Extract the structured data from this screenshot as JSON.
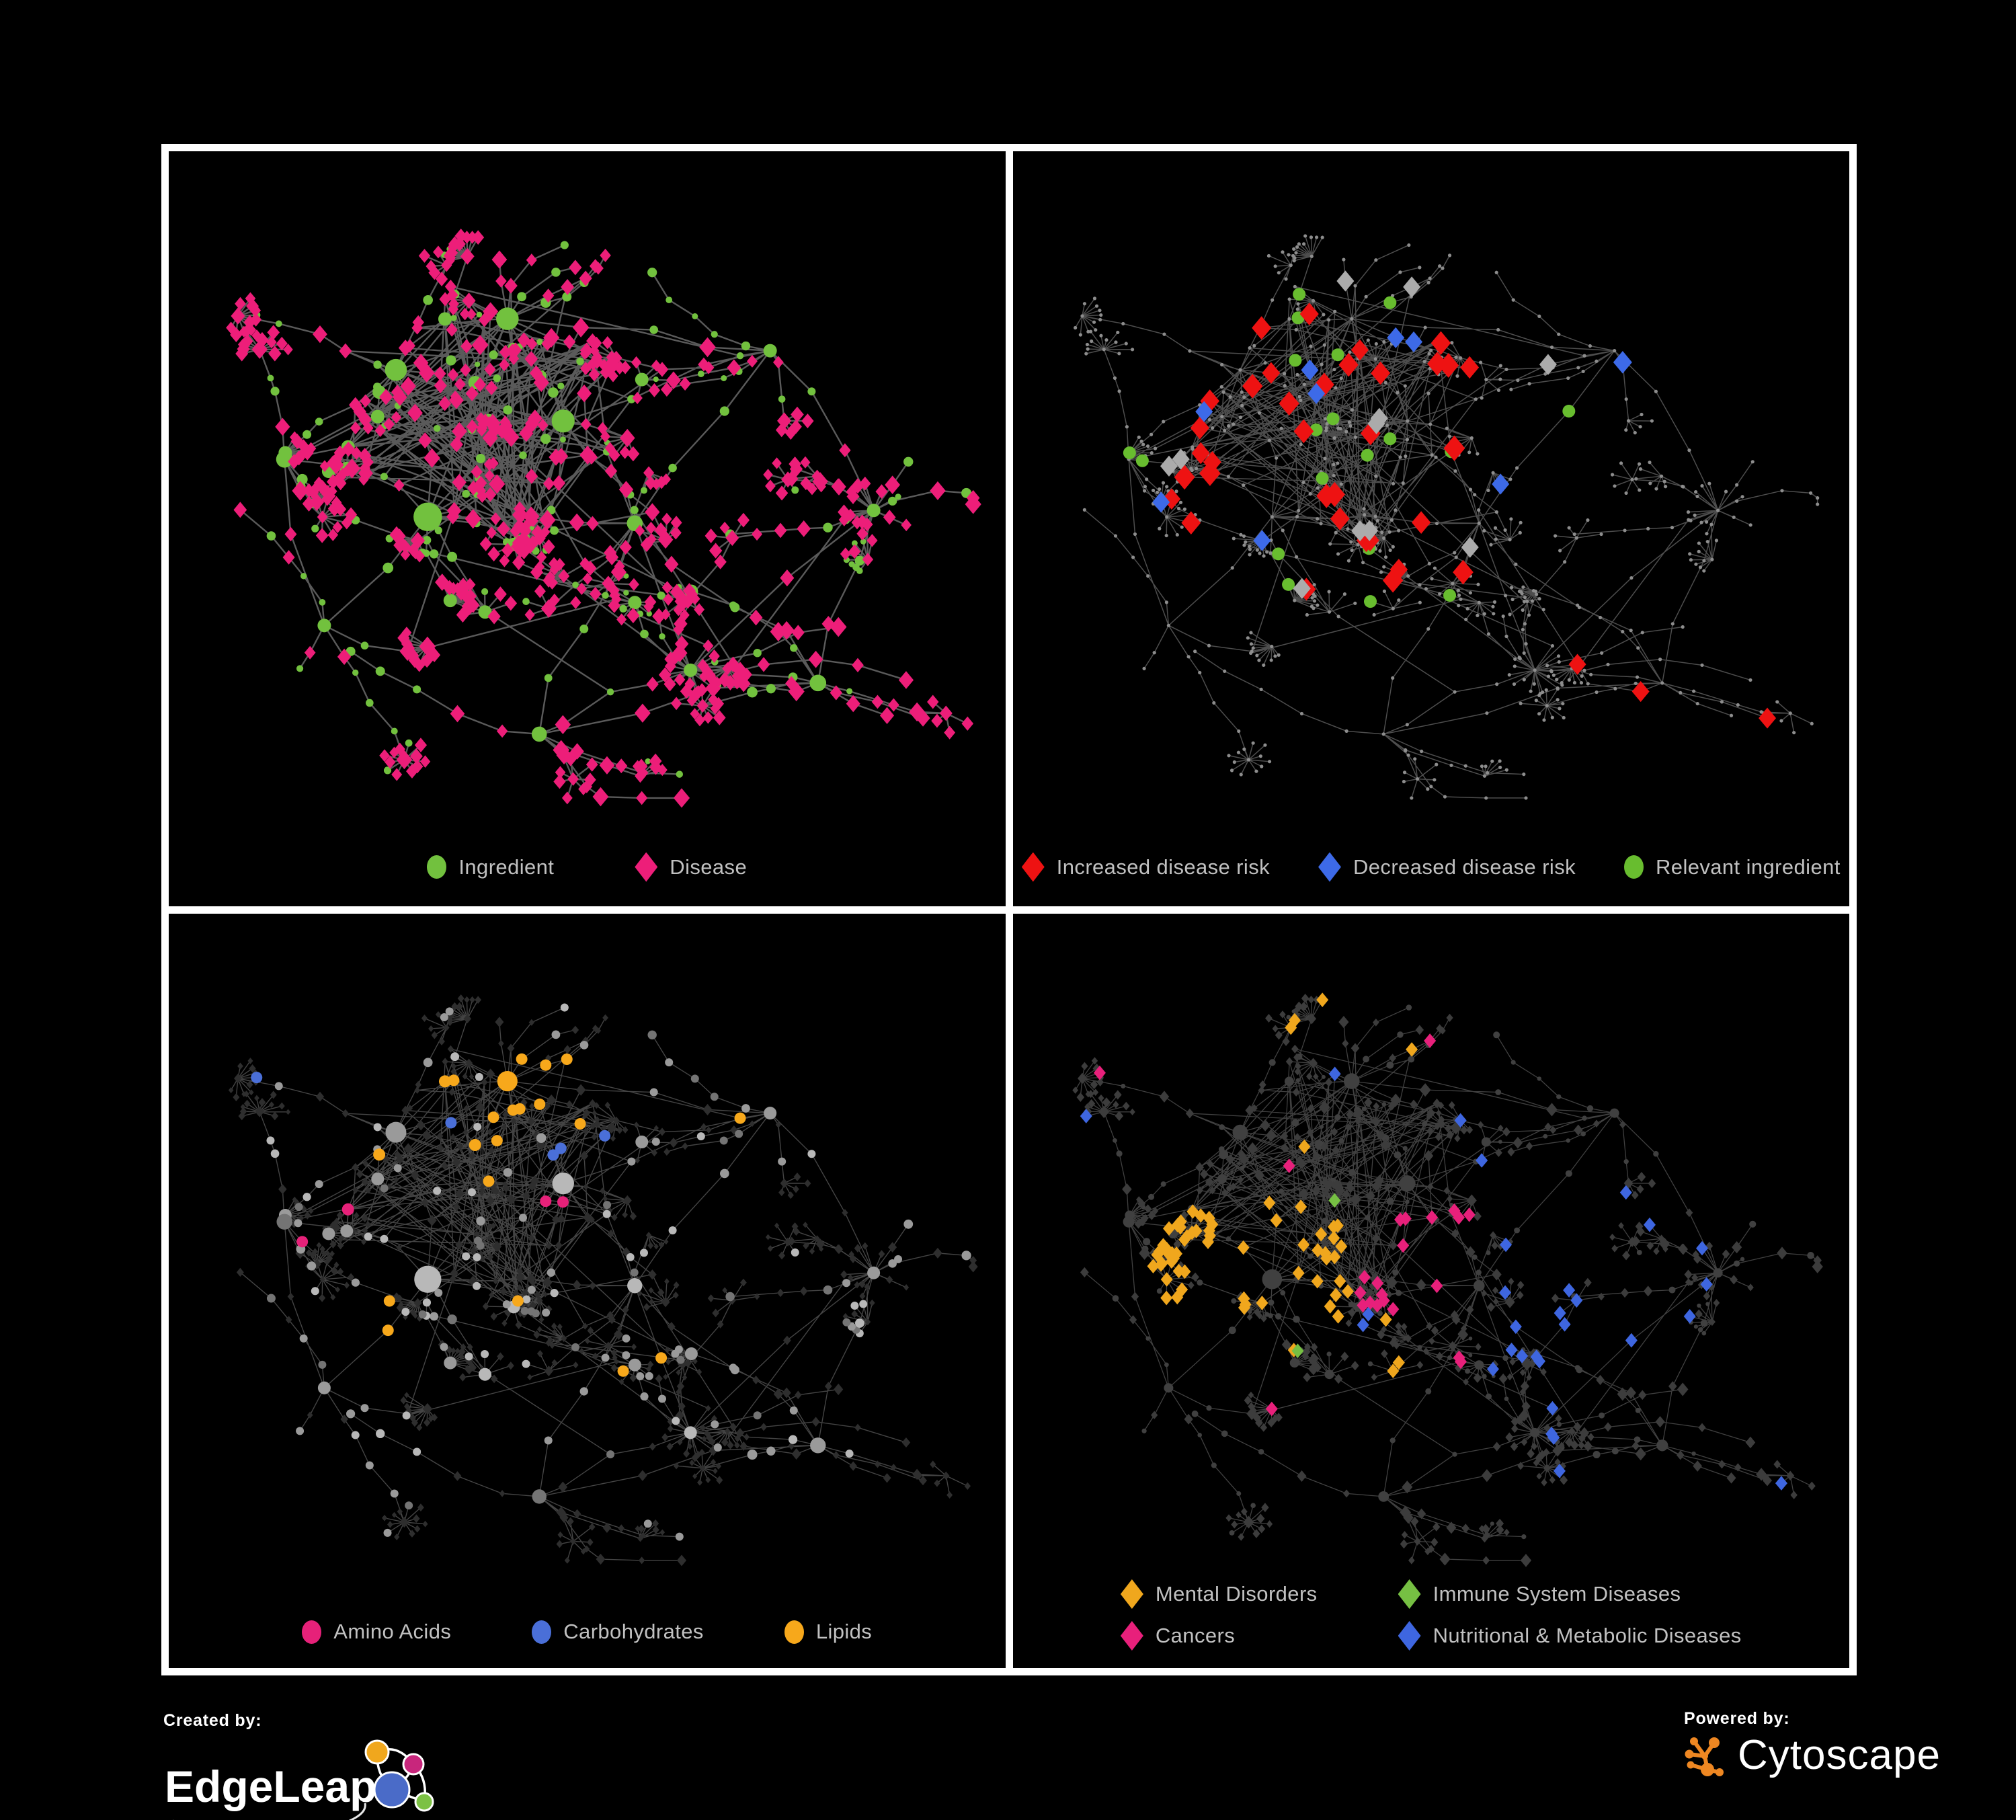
{
  "panels": [
    {
      "name": "ingredient-disease-network",
      "legend": [
        {
          "shape": "circle",
          "color": "#72c13e",
          "label": "Ingredient"
        },
        {
          "shape": "diamond",
          "color": "#ed1e79",
          "label": "Disease"
        }
      ],
      "style": {
        "edge": "#6a6a6a",
        "edgeWidth": 2.4,
        "circle": "#72c13e",
        "diamond": "#ed1e79"
      }
    },
    {
      "name": "disease-risk-network",
      "legend": [
        {
          "shape": "diamond",
          "color": "#ee1212",
          "label": "Increased disease risk"
        },
        {
          "shape": "diamond",
          "color": "#3d6ae8",
          "label": "Decreased disease risk"
        },
        {
          "shape": "circle",
          "color": "#68bd2f",
          "label": "Relevant ingredient"
        }
      ],
      "style": {
        "edge": "#5a5a5a",
        "edgeWidth": 1.5,
        "base": "#8d8d8d",
        "red": "#ee1212",
        "blue": "#3d6ae8",
        "grayHl": "#ababab",
        "green": "#68bd2f"
      }
    },
    {
      "name": "macronutrient-network",
      "legend": [
        {
          "shape": "circle",
          "color": "#e62179",
          "label": "Amino Acids"
        },
        {
          "shape": "circle",
          "color": "#4a6fd8",
          "label": "Carbohydrates"
        },
        {
          "shape": "circle",
          "color": "#f7a81b",
          "label": "Lipids"
        }
      ],
      "style": {
        "edge": "#505050",
        "edgeWidth": 1.4,
        "circleBase": "#9a9a9a",
        "diamondBase": "#2e2e2e",
        "amino": "#e62179",
        "carb": "#4a6fd8",
        "lipid": "#f7a81b"
      }
    },
    {
      "name": "disease-category-network",
      "legend": [
        {
          "shape": "diamond",
          "color": "#f0a71d",
          "label": "Mental Disorders"
        },
        {
          "shape": "diamond",
          "color": "#76c043",
          "label": "Immune System Diseases"
        },
        {
          "shape": "diamond",
          "color": "#e8207b",
          "label": "Cancers"
        },
        {
          "shape": "diamond",
          "color": "#3e66e0",
          "label": "Nutritional & Metabolic Diseases"
        }
      ],
      "style": {
        "edge": "#4b4b4b",
        "edgeWidth": 1.3,
        "base": "#3c3c3c",
        "circleBase": "#404040",
        "mental": "#f0a71d",
        "immune": "#76c043",
        "cancer": "#e8207b",
        "nutritional": "#3e66e0"
      }
    }
  ],
  "footer": {
    "created_by": "Created by:",
    "brand_left": "EdgeLeap",
    "powered_by": "Powered by:",
    "brand_right": "Cytoscape",
    "edgeleap_colors": {
      "orange": "#f0a71d",
      "pink": "#c8267c",
      "blue": "#4a6bc8",
      "green": "#7cc144"
    },
    "cytoscape_orange": "#ee8722"
  },
  "network": {
    "seed": 1337
  }
}
